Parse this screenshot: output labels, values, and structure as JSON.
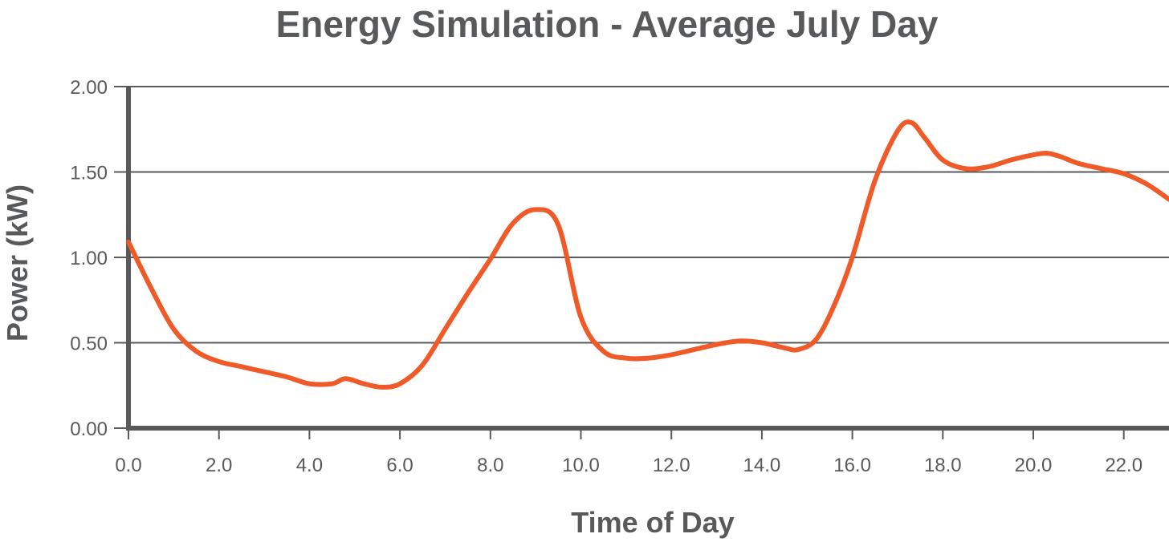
{
  "chart_data": {
    "type": "line",
    "title": "Energy Simulation - Average July Day",
    "xlabel": "Time of Day",
    "ylabel": "Power (kW)",
    "xlim": [
      0,
      23
    ],
    "ylim": [
      0,
      2
    ],
    "x_ticks": [
      "0.0",
      "2.0",
      "4.0",
      "6.0",
      "8.0",
      "10.0",
      "12.0",
      "14.0",
      "16.0",
      "18.0",
      "20.0",
      "22.0"
    ],
    "y_ticks": [
      "0.00",
      "0.50",
      "1.00",
      "1.50",
      "2.00"
    ],
    "grid": "horizontal",
    "legend": "none",
    "series": [
      {
        "x": [
          0,
          0.5,
          1,
          1.5,
          2,
          2.5,
          3,
          3.5,
          4,
          4.5,
          4.8,
          5.2,
          5.6,
          6,
          6.5,
          7,
          7.5,
          8,
          8.5,
          9,
          9.5,
          10,
          10.5,
          11,
          11.5,
          12,
          12.5,
          13,
          13.5,
          14,
          14.5,
          14.8,
          15.2,
          15.6,
          16,
          16.5,
          17,
          17.3,
          17.6,
          18,
          18.5,
          19,
          19.5,
          20,
          20.3,
          20.6,
          21,
          21.5,
          22,
          22.5,
          23
        ],
        "values": [
          1.09,
          0.82,
          0.58,
          0.45,
          0.39,
          0.36,
          0.33,
          0.3,
          0.26,
          0.26,
          0.29,
          0.26,
          0.24,
          0.26,
          0.37,
          0.58,
          0.79,
          0.99,
          1.2,
          1.28,
          1.19,
          0.65,
          0.45,
          0.41,
          0.41,
          0.43,
          0.46,
          0.49,
          0.51,
          0.5,
          0.47,
          0.46,
          0.52,
          0.72,
          1.0,
          1.45,
          1.74,
          1.79,
          1.7,
          1.57,
          1.52,
          1.53,
          1.57,
          1.6,
          1.61,
          1.59,
          1.55,
          1.52,
          1.49,
          1.43,
          1.34
        ]
      }
    ],
    "colors": {
      "line": "#ef5a28",
      "axis": "#58595b",
      "grid": "#58595b",
      "text": "#58595b"
    }
  }
}
